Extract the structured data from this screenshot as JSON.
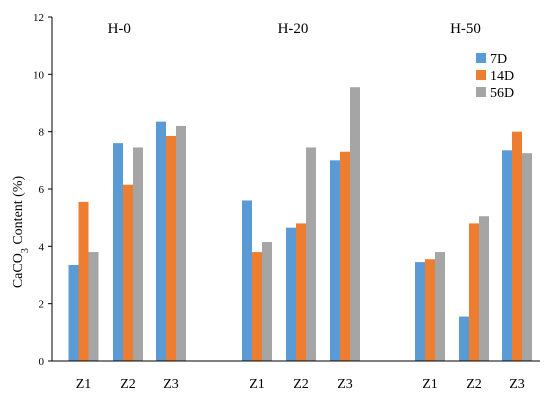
{
  "chart_data": {
    "type": "bar",
    "ylabel": "CaCO3 Content (%)",
    "ylabel_parts": {
      "main": "CaCO",
      "sub": "3",
      "rest": " Content (%)"
    },
    "ylim": [
      0,
      12
    ],
    "yticks": [
      0,
      2,
      4,
      6,
      8,
      10,
      12
    ],
    "grid": false,
    "legend_position": "top-right",
    "groups": [
      {
        "label": "H-0",
        "categories": [
          "Z1",
          "Z2",
          "Z3"
        ]
      },
      {
        "label": "H-20",
        "categories": [
          "Z1",
          "Z2",
          "Z3"
        ]
      },
      {
        "label": "H-50",
        "categories": [
          "Z1",
          "Z2",
          "Z3"
        ]
      }
    ],
    "series": [
      {
        "name": "7D",
        "color": "#5b9bd5",
        "values": [
          3.35,
          7.6,
          8.35,
          5.6,
          4.65,
          7.0,
          3.45,
          1.55,
          7.35
        ]
      },
      {
        "name": "14D",
        "color": "#ed7d31",
        "values": [
          5.55,
          6.15,
          7.85,
          3.8,
          4.8,
          7.3,
          3.55,
          4.8,
          8.0
        ]
      },
      {
        "name": "56D",
        "color": "#a5a5a5",
        "values": [
          3.8,
          7.45,
          8.2,
          4.15,
          7.45,
          9.55,
          3.8,
          5.05,
          7.25
        ]
      }
    ]
  }
}
